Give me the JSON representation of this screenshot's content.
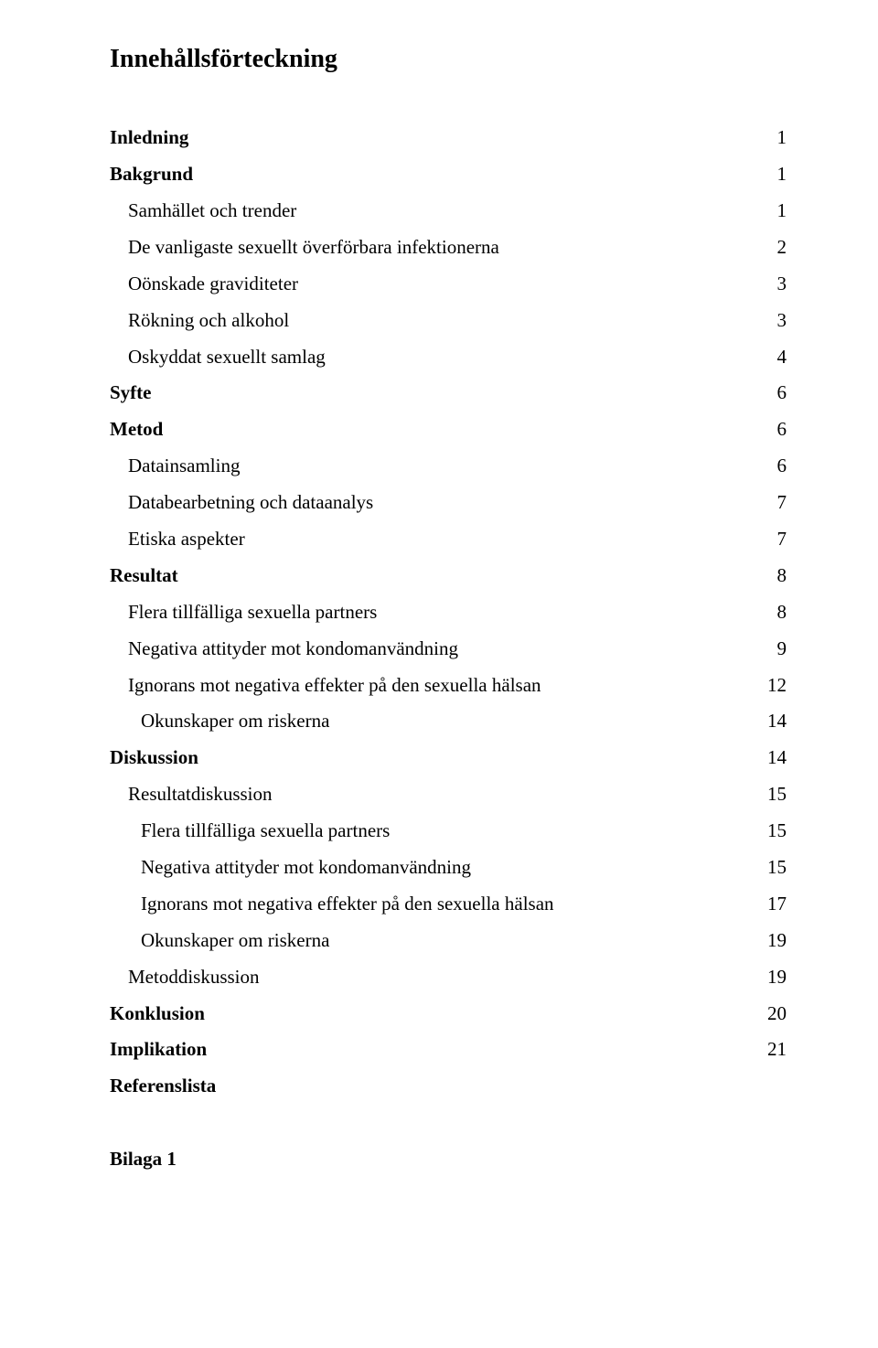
{
  "title": "Innehållsförteckning",
  "entries": [
    {
      "label": "Inledning",
      "page": "1",
      "bold": true,
      "indent": 0
    },
    {
      "label": "Bakgrund",
      "page": "1",
      "bold": true,
      "indent": 0
    },
    {
      "label": "Samhället och trender",
      "page": "1",
      "bold": false,
      "indent": 1
    },
    {
      "label": "De vanligaste sexuellt överförbara infektionerna",
      "page": "2",
      "bold": false,
      "indent": 1
    },
    {
      "label": "Oönskade graviditeter",
      "page": "3",
      "bold": false,
      "indent": 1
    },
    {
      "label": "Rökning och alkohol",
      "page": "3",
      "bold": false,
      "indent": 1
    },
    {
      "label": "Oskyddat sexuellt samlag",
      "page": "4",
      "bold": false,
      "indent": 1
    },
    {
      "label": "Syfte",
      "page": "6",
      "bold": true,
      "indent": 0
    },
    {
      "label": "Metod",
      "page": "6",
      "bold": true,
      "indent": 0
    },
    {
      "label": "Datainsamling",
      "page": "6",
      "bold": false,
      "indent": 1
    },
    {
      "label": "Databearbetning och dataanalys",
      "page": "7",
      "bold": false,
      "indent": 1
    },
    {
      "label": "Etiska aspekter",
      "page": "7",
      "bold": false,
      "indent": 1
    },
    {
      "label": "Resultat",
      "page": "8",
      "bold": true,
      "indent": 0
    },
    {
      "label": "Flera tillfälliga sexuella partners",
      "page": "8",
      "bold": false,
      "indent": 1
    },
    {
      "label": "Negativa attityder mot kondomanvändning",
      "page": "9",
      "bold": false,
      "indent": 1
    },
    {
      "label": "Ignorans mot negativa effekter på den sexuella hälsan",
      "page": "12",
      "bold": false,
      "indent": 1
    },
    {
      "label": "Okunskaper om riskerna",
      "page": "14",
      "bold": false,
      "indent": 2
    },
    {
      "label": "Diskussion",
      "page": "14",
      "bold": true,
      "indent": 0
    },
    {
      "label": "Resultatdiskussion",
      "page": "15",
      "bold": false,
      "indent": 1
    },
    {
      "label": "Flera tillfälliga sexuella partners",
      "page": "15",
      "bold": false,
      "indent": 2
    },
    {
      "label": "Negativa attityder mot kondomanvändning",
      "page": "15",
      "bold": false,
      "indent": 2
    },
    {
      "label": "Ignorans mot negativa effekter på den sexuella hälsan",
      "page": "17",
      "bold": false,
      "indent": 2
    },
    {
      "label": "Okunskaper om riskerna",
      "page": "19",
      "bold": false,
      "indent": 2
    },
    {
      "label": "Metoddiskussion",
      "page": "19",
      "bold": false,
      "indent": 1
    },
    {
      "label": "Konklusion",
      "page": "20",
      "bold": true,
      "indent": 0
    },
    {
      "label": "Implikation",
      "page": "21",
      "bold": true,
      "indent": 0
    },
    {
      "label": "Referenslista",
      "page": "",
      "bold": true,
      "indent": 0
    }
  ],
  "appendix": "Bilaga 1"
}
